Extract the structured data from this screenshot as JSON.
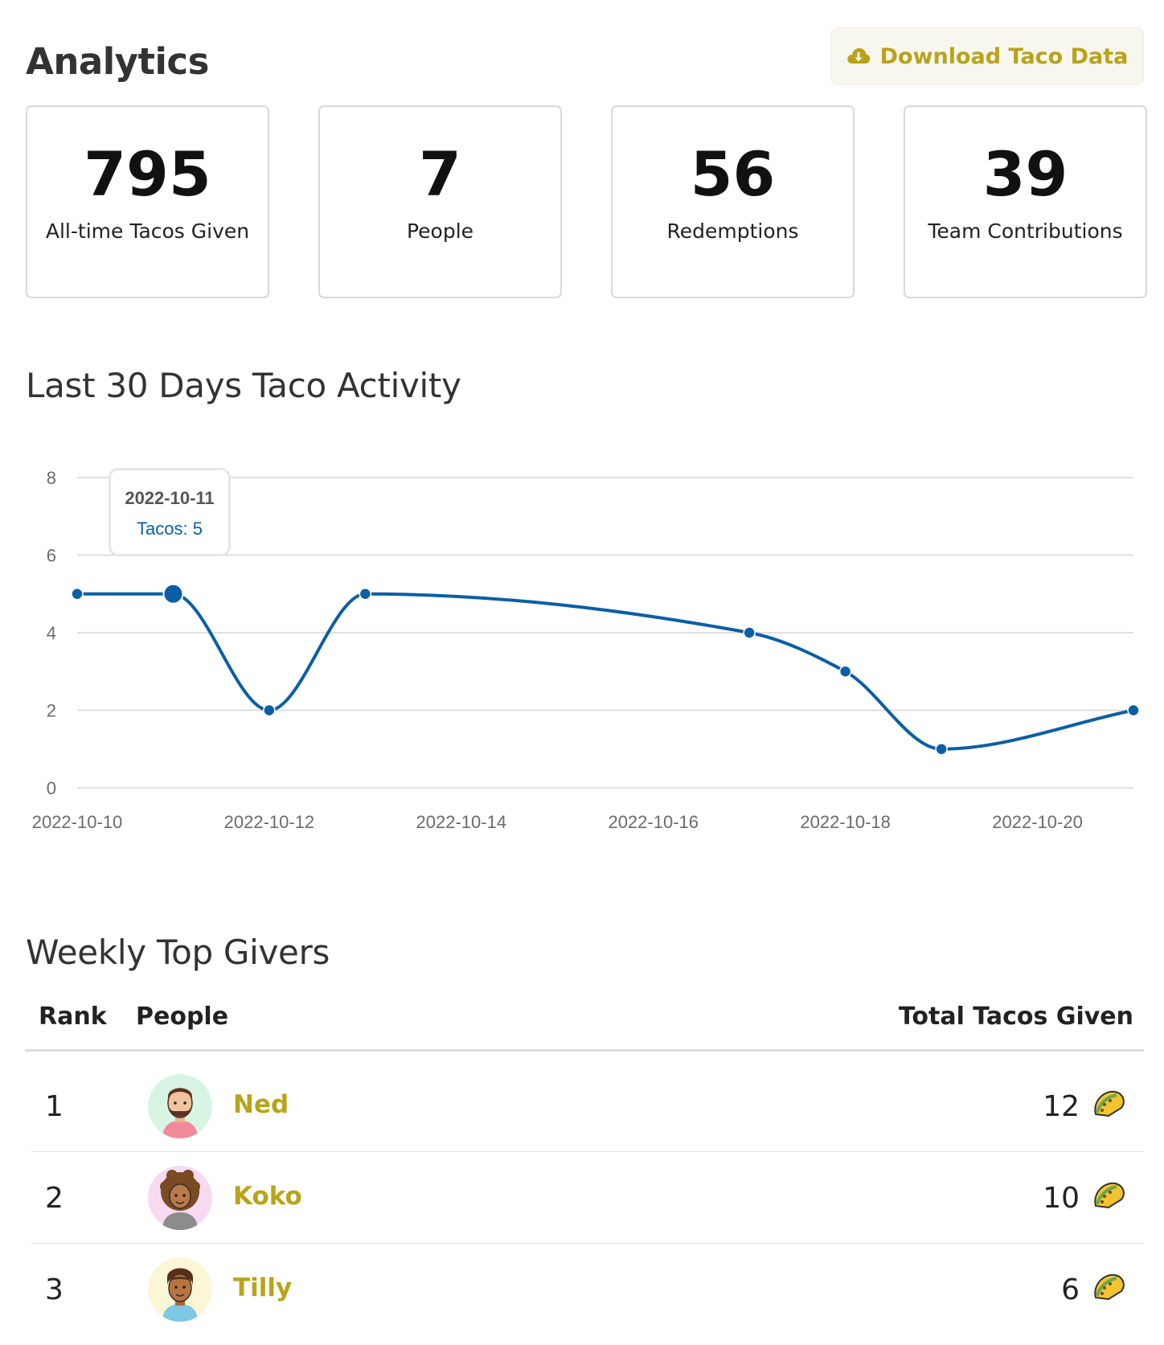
{
  "header": {
    "title": "Analytics",
    "download_label": "Download Taco Data",
    "download_icon": "cloud-download-icon",
    "accent_color": "#b9a31a"
  },
  "stats": [
    {
      "value": "795",
      "label": "All-time Tacos Given"
    },
    {
      "value": "7",
      "label": "People"
    },
    {
      "value": "56",
      "label": "Redemptions"
    },
    {
      "value": "39",
      "label": "Team Contributions"
    }
  ],
  "activity": {
    "title": "Last 30 Days Taco Activity",
    "tooltip": {
      "date": "2022-10-11",
      "text": "Tacos: 5"
    }
  },
  "chart_data": {
    "type": "line",
    "title": "Last 30 Days Taco Activity",
    "xlabel": "",
    "ylabel": "",
    "x": [
      "2022-10-10",
      "2022-10-11",
      "2022-10-12",
      "2022-10-13",
      "2022-10-17",
      "2022-10-18",
      "2022-10-19",
      "2022-10-21"
    ],
    "series": [
      {
        "name": "Tacos",
        "values": [
          5,
          5,
          2,
          5,
          4,
          3,
          1,
          2
        ],
        "color": "#0b5fa5"
      }
    ],
    "x_ticks": [
      "2022-10-10",
      "2022-10-12",
      "2022-10-14",
      "2022-10-16",
      "2022-10-18",
      "2022-10-20"
    ],
    "y_ticks": [
      0,
      2,
      4,
      6,
      8
    ],
    "xlim": [
      "2022-10-10",
      "2022-10-21"
    ],
    "ylim": [
      0,
      8
    ],
    "grid": true,
    "highlighted_point": "2022-10-11"
  },
  "leaderboard": {
    "title": "Weekly Top Givers",
    "columns": {
      "rank": "Rank",
      "people": "People",
      "total": "Total Tacos Given"
    },
    "rows": [
      {
        "rank": "1",
        "name": "Ned",
        "total": "12",
        "avatar_bg": "#d8f5e4",
        "icon": "taco-icon"
      },
      {
        "rank": "2",
        "name": "Koko",
        "total": "10",
        "avatar_bg": "#f8d9f2",
        "icon": "taco-icon"
      },
      {
        "rank": "3",
        "name": "Tilly",
        "total": "6",
        "avatar_bg": "#fbf6d6",
        "icon": "taco-icon"
      }
    ]
  }
}
